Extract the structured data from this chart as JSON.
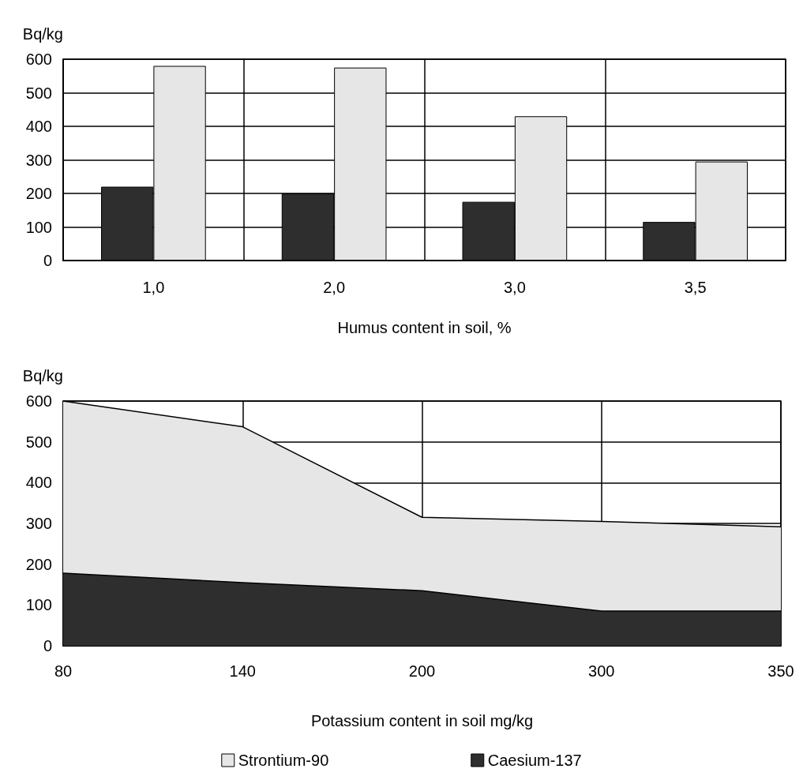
{
  "chart_data": [
    {
      "type": "bar",
      "xlabel": "Humus content in soil, %",
      "ylabel": "Bq/kg",
      "categories": [
        "1,0",
        "2,0",
        "3,0",
        "3,5"
      ],
      "series": [
        {
          "color": "#2e2e2e",
          "values": [
            220,
            200,
            175,
            115
          ]
        },
        {
          "color": "#e6e6e6",
          "values": [
            580,
            575,
            430,
            295
          ]
        }
      ],
      "ylim": [
        0,
        600
      ],
      "yticks": [
        0,
        100,
        200,
        300,
        400,
        500,
        600
      ],
      "grid": true,
      "legend": false
    },
    {
      "type": "area",
      "xlabel": "Potassium content in soil mg/kg",
      "ylabel": "Bq/kg",
      "categories": [
        "80",
        "140",
        "200",
        "300",
        "350"
      ],
      "series": [
        {
          "name": "Strontium-90",
          "color": "#e6e6e6",
          "values": [
            600,
            537,
            315,
            305,
            292
          ]
        },
        {
          "name": "Caesium-137",
          "color": "#2e2e2e",
          "values": [
            178,
            155,
            135,
            85,
            85
          ]
        }
      ],
      "ylim": [
        0,
        600
      ],
      "yticks": [
        0,
        100,
        200,
        300,
        400,
        500,
        600
      ],
      "grid": true,
      "legend": "bottom"
    }
  ]
}
